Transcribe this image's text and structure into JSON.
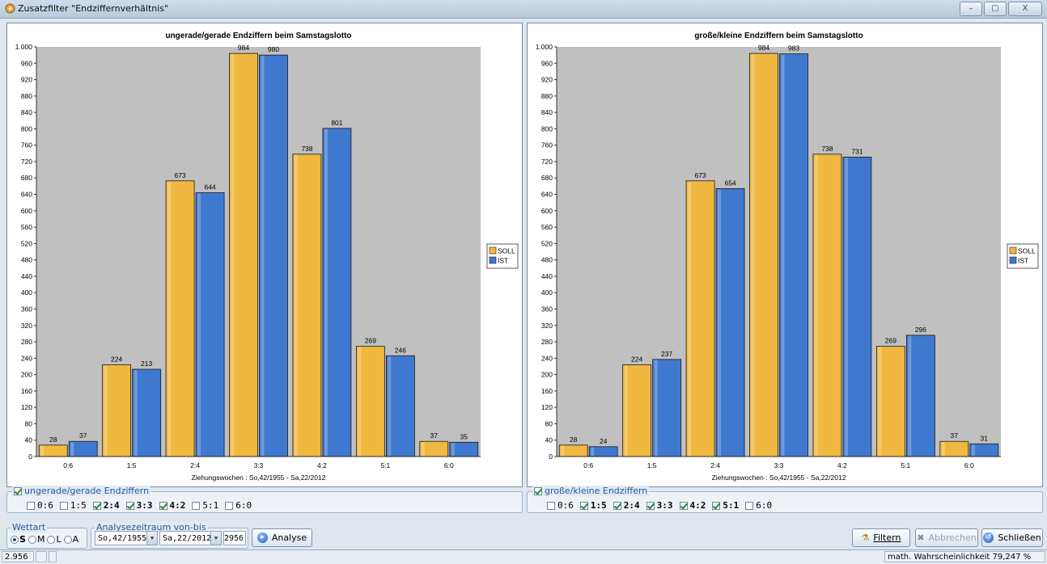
{
  "window": {
    "title": "Zusatzfilter \"Endziffernverhältnis\"",
    "controls": [
      "–",
      "▢",
      "X"
    ]
  },
  "colors": {
    "soll": "#f0b840",
    "ist": "#3f78cf",
    "plot_bg": "#c0c0c0"
  },
  "chart_data": [
    {
      "type": "bar",
      "title": "ungerade/gerade Endziffern beim Samstagslotto",
      "xlabel": "Ziehungswochen : So,42/1955 - Sa,22/2012",
      "ylabel": "",
      "ylim": [
        0,
        1000
      ],
      "yticks": [
        0,
        40,
        80,
        120,
        160,
        200,
        240,
        280,
        320,
        360,
        400,
        440,
        480,
        520,
        560,
        600,
        640,
        680,
        720,
        760,
        800,
        840,
        880,
        920,
        960,
        1000
      ],
      "ytick_labels": [
        "0",
        "40",
        "80",
        "120",
        "160",
        "200",
        "240",
        "280",
        "320",
        "360",
        "400",
        "440",
        "480",
        "520",
        "560",
        "600",
        "640",
        "680",
        "720",
        "760",
        "800",
        "840",
        "880",
        "920",
        "960",
        "1.000"
      ],
      "categories": [
        "0:6",
        "1:5",
        "2:4",
        "3:3",
        "4:2",
        "5:1",
        "6:0"
      ],
      "series": [
        {
          "name": "SOLL",
          "values": [
            28,
            224,
            673,
            984,
            738,
            269,
            37
          ]
        },
        {
          "name": "IST",
          "values": [
            37,
            213,
            644,
            980,
            801,
            246,
            35
          ]
        }
      ],
      "legend_position": "right",
      "grid": false
    },
    {
      "type": "bar",
      "title": "große/kleine Endziffern beim Samstagslotto",
      "xlabel": "Ziehungswochen : So,42/1955 - Sa,22/2012",
      "ylabel": "",
      "ylim": [
        0,
        1000
      ],
      "yticks": [
        0,
        40,
        80,
        120,
        160,
        200,
        240,
        280,
        320,
        360,
        400,
        440,
        480,
        520,
        560,
        600,
        640,
        680,
        720,
        760,
        800,
        840,
        880,
        920,
        960,
        1000
      ],
      "ytick_labels": [
        "0",
        "40",
        "80",
        "120",
        "160",
        "200",
        "240",
        "280",
        "320",
        "360",
        "400",
        "440",
        "480",
        "520",
        "560",
        "600",
        "640",
        "680",
        "720",
        "760",
        "800",
        "840",
        "880",
        "920",
        "960",
        "1.000"
      ],
      "categories": [
        "0:6",
        "1:5",
        "2:4",
        "3:3",
        "4:2",
        "5:1",
        "6:0"
      ],
      "series": [
        {
          "name": "SOLL",
          "values": [
            28,
            224,
            673,
            984,
            738,
            269,
            37
          ]
        },
        {
          "name": "IST",
          "values": [
            24,
            237,
            654,
            983,
            731,
            296,
            31
          ]
        }
      ],
      "legend_position": "right",
      "grid": false
    }
  ],
  "filters": {
    "left": {
      "label": "ungerade/gerade Endziffern",
      "enabled": true,
      "options": [
        {
          "label": "0:6",
          "checked": false
        },
        {
          "label": "1:5",
          "checked": false
        },
        {
          "label": "2:4",
          "checked": true
        },
        {
          "label": "3:3",
          "checked": true
        },
        {
          "label": "4:2",
          "checked": true
        },
        {
          "label": "5:1",
          "checked": false
        },
        {
          "label": "6:0",
          "checked": false
        }
      ]
    },
    "right": {
      "label": "große/kleine Endziffern",
      "enabled": true,
      "options": [
        {
          "label": "0:6",
          "checked": false
        },
        {
          "label": "1:5",
          "checked": true
        },
        {
          "label": "2:4",
          "checked": true
        },
        {
          "label": "3:3",
          "checked": true
        },
        {
          "label": "4:2",
          "checked": true
        },
        {
          "label": "5:1",
          "checked": true
        },
        {
          "label": "6:0",
          "checked": false
        }
      ]
    }
  },
  "wettart": {
    "label": "Wettart",
    "options": [
      {
        "label": "S",
        "selected": true
      },
      {
        "label": "M",
        "selected": false
      },
      {
        "label": "L",
        "selected": false
      },
      {
        "label": "A",
        "selected": false
      }
    ]
  },
  "analyse": {
    "label": "Analysezeitraum von-bis",
    "from": "So,42/1955",
    "to": "Sa,22/2012",
    "count": "2956",
    "button": "Analyse"
  },
  "buttons": {
    "filtern": "Filtern",
    "abbrechen": "Abbrechen",
    "schliessen": "Schließen"
  },
  "status": {
    "count": "2.956",
    "probability": "math. Wahrscheinlichkeit 79,247 %"
  }
}
